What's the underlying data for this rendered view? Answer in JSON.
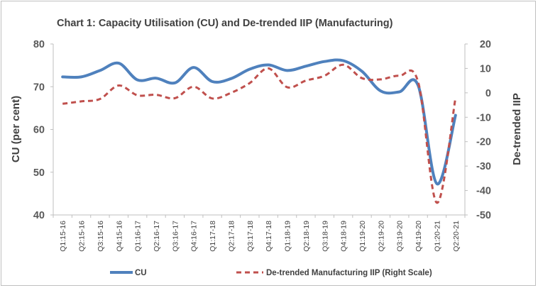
{
  "chart_data": {
    "type": "line",
    "title": "Chart 1: Capacity Utilisation (CU) and De-trended IIP (Manufacturing)",
    "ylabel": "CU (per cent)",
    "y2label": "De-trended IIP",
    "ylim": [
      40,
      80
    ],
    "y2lim": [
      -50,
      20
    ],
    "yticks": [
      "80",
      "70",
      "60",
      "50",
      "40"
    ],
    "y2ticks": [
      "20",
      "10",
      "0",
      "-10",
      "-20",
      "-30",
      "-40",
      "-50"
    ],
    "categories": [
      "Q1:15-16",
      "Q2:15-16",
      "Q3:15-16",
      "Q4:15-16",
      "Q1:16-17",
      "Q2:16-17",
      "Q3:16-17",
      "Q4:16-17",
      "Q1:17-18",
      "Q2:17-18",
      "Q3:17-18",
      "Q4:17-18",
      "Q1:18-19",
      "Q2:18-19",
      "Q3:18-19",
      "Q4:18-19",
      "Q1:19-20",
      "Q2:19-20",
      "Q3:19-20",
      "Q4:19-20",
      "Q1:20-21",
      "Q2:20-21"
    ],
    "series": [
      {
        "name": "CU",
        "axis": "left",
        "color": "#4f81bd",
        "style": "solid",
        "values": [
          72.3,
          72.3,
          73.8,
          75.5,
          71.6,
          72.0,
          70.9,
          74.5,
          71.2,
          71.9,
          74.1,
          75.1,
          73.8,
          74.8,
          75.9,
          76.1,
          73.6,
          69.0,
          68.8,
          70.3,
          47.3,
          63.3
        ]
      },
      {
        "name": "De-trended Manufacturing IIP (Right Scale)",
        "axis": "right",
        "color": "#c0504d",
        "style": "dashed",
        "values": [
          -4.5,
          -3.5,
          -2.5,
          3.0,
          -1.0,
          -0.8,
          -2.2,
          2.5,
          -2.3,
          0.0,
          4.0,
          10.0,
          2.3,
          5.0,
          7.0,
          11.5,
          6.0,
          5.5,
          7.0,
          4.5,
          -45.0,
          -2.0
        ]
      }
    ],
    "legend_position": "bottom",
    "grid": false
  }
}
